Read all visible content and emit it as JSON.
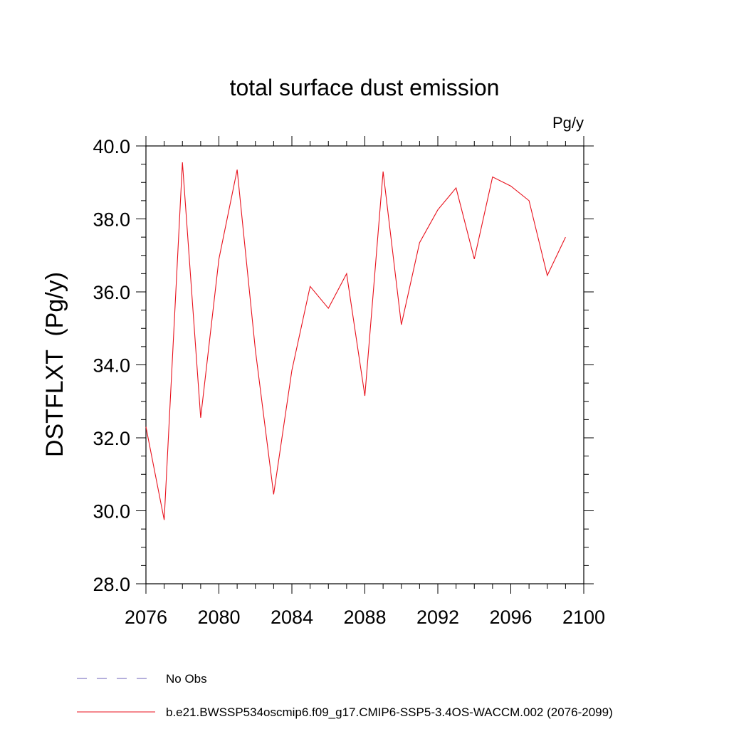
{
  "chart_data": {
    "type": "line",
    "title": "total surface dust emission",
    "units": "Pg/y",
    "ylabel": "DSTFLXT  (Pg/y)",
    "xlabel": "",
    "xlim": [
      2076,
      2100
    ],
    "ylim": [
      28.0,
      40.0
    ],
    "x_ticks": [
      "2076",
      "2080",
      "2084",
      "2088",
      "2092",
      "2096",
      "2100"
    ],
    "y_ticks": [
      "28.0",
      "30.0",
      "32.0",
      "34.0",
      "36.0",
      "38.0",
      "40.0"
    ],
    "x": [
      2076,
      2077,
      2078,
      2079,
      2080,
      2081,
      2082,
      2083,
      2084,
      2085,
      2086,
      2087,
      2088,
      2089,
      2090,
      2091,
      2092,
      2093,
      2094,
      2095,
      2096,
      2097,
      2098,
      2099
    ],
    "series": [
      {
        "name": "b.e21.BWSSP534oscmip6.f09_g17.CMIP6-SSP5-3.4OS-WACCM.002 (2076-2099)",
        "color": "#e8111c",
        "values": [
          32.3,
          29.75,
          39.55,
          32.55,
          36.9,
          39.35,
          34.4,
          30.45,
          33.85,
          36.15,
          35.55,
          36.5,
          33.15,
          39.3,
          35.1,
          37.35,
          38.25,
          38.85,
          36.9,
          39.15,
          38.9,
          38.5,
          36.45,
          37.5
        ]
      }
    ],
    "legend": [
      {
        "label": "No Obs",
        "style": "dashed",
        "color": "#6b5fb8"
      },
      {
        "label": "b.e21.BWSSP534oscmip6.f09_g17.CMIP6-SSP5-3.4OS-WACCM.002 (2076-2099)",
        "style": "solid",
        "color": "#e8111c"
      }
    ]
  }
}
